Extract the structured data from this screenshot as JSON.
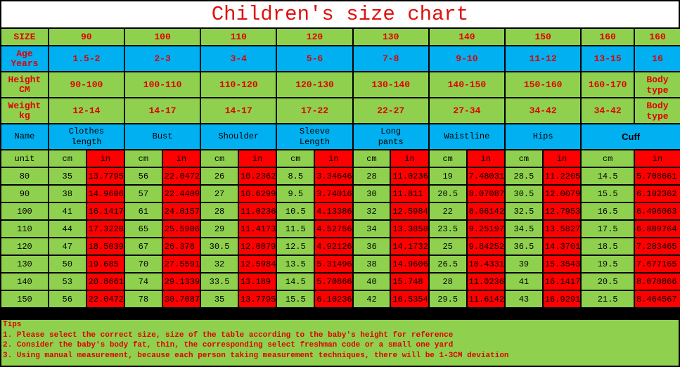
{
  "title": "Children's size chart",
  "size_row": {
    "label": "SIZE",
    "values": [
      "90",
      "100",
      "110",
      "120",
      "130",
      "140",
      "150",
      "160",
      "160"
    ]
  },
  "age_row": {
    "label": "Age\nYears",
    "values": [
      "1.5-2",
      "2-3",
      "3-4",
      "5-6",
      "7-8",
      "9-10",
      "11-12",
      "13-15",
      "16"
    ]
  },
  "height_row": {
    "label": "Height\nCM",
    "values": [
      "90-100",
      "100-110",
      "110-120",
      "120-130",
      "130-140",
      "140-150",
      "150-160",
      "160-170",
      "Body\ntype"
    ]
  },
  "weight_row": {
    "label": "Weight\nkg",
    "values": [
      "12-14",
      "14-17",
      "14-17",
      "17-22",
      "22-27",
      "27-34",
      "34-42",
      "34-42",
      "Body\ntype"
    ]
  },
  "name_row": {
    "label": "Name",
    "values": [
      "Clothes\nlength",
      "Bust",
      "Shoulder",
      "Sleeve\nLength",
      "Long\npants",
      "Waistline",
      "Hips",
      "Cuff"
    ]
  },
  "unit_row": {
    "label": "unit",
    "cm": "cm",
    "in": "in"
  },
  "rows": [
    {
      "size": "80",
      "v": [
        [
          "35",
          "13.7795"
        ],
        [
          "56",
          "22.0472"
        ],
        [
          "26",
          "10.2362"
        ],
        [
          "8.5",
          "3.34646"
        ],
        [
          "28",
          "11.0236"
        ],
        [
          "19",
          "7.48031"
        ],
        [
          "28.5",
          "11.2205"
        ],
        [
          "14.5",
          "5.708661"
        ]
      ]
    },
    {
      "size": "90",
      "v": [
        [
          "38",
          "14.9606"
        ],
        [
          "57",
          "22.4409"
        ],
        [
          "27",
          "10.6299"
        ],
        [
          "9.5",
          "3.74016"
        ],
        [
          "30",
          "11.811"
        ],
        [
          "20.5",
          "8.07087"
        ],
        [
          "30.5",
          "12.0079"
        ],
        [
          "15.5",
          "6.102362"
        ]
      ]
    },
    {
      "size": "100",
      "v": [
        [
          "41",
          "16.1417"
        ],
        [
          "61",
          "24.0157"
        ],
        [
          "28",
          "11.0236"
        ],
        [
          "10.5",
          "4.13386"
        ],
        [
          "32",
          "12.5984"
        ],
        [
          "22",
          "8.66142"
        ],
        [
          "32.5",
          "12.7953"
        ],
        [
          "16.5",
          "6.496063"
        ]
      ]
    },
    {
      "size": "110",
      "v": [
        [
          "44",
          "17.3228"
        ],
        [
          "65",
          "25.5906"
        ],
        [
          "29",
          "11.4173"
        ],
        [
          "11.5",
          "4.52756"
        ],
        [
          "34",
          "13.3858"
        ],
        [
          "23.5",
          "9.25197"
        ],
        [
          "34.5",
          "13.5827"
        ],
        [
          "17.5",
          "6.889764"
        ]
      ]
    },
    {
      "size": "120",
      "v": [
        [
          "47",
          "18.5039"
        ],
        [
          "67",
          "26.378"
        ],
        [
          "30.5",
          "12.0079"
        ],
        [
          "12.5",
          "4.92126"
        ],
        [
          "36",
          "14.1732"
        ],
        [
          "25",
          "9.84252"
        ],
        [
          "36.5",
          "14.3701"
        ],
        [
          "18.5",
          "7.283465"
        ]
      ]
    },
    {
      "size": "130",
      "v": [
        [
          "50",
          "19.685"
        ],
        [
          "70",
          "27.5591"
        ],
        [
          "32",
          "12.5984"
        ],
        [
          "13.5",
          "5.31496"
        ],
        [
          "38",
          "14.9606"
        ],
        [
          "26.5",
          "10.4331"
        ],
        [
          "39",
          "15.3543"
        ],
        [
          "19.5",
          "7.677165"
        ]
      ]
    },
    {
      "size": "140",
      "v": [
        [
          "53",
          "20.8661"
        ],
        [
          "74",
          "29.1339"
        ],
        [
          "33.5",
          "13.189"
        ],
        [
          "14.5",
          "5.70866"
        ],
        [
          "40",
          "15.748"
        ],
        [
          "28",
          "11.0236"
        ],
        [
          "41",
          "16.1417"
        ],
        [
          "20.5",
          "8.070866"
        ]
      ]
    },
    {
      "size": "150",
      "v": [
        [
          "56",
          "22.0472"
        ],
        [
          "78",
          "30.7087"
        ],
        [
          "35",
          "13.7795"
        ],
        [
          "15.5",
          "6.10236"
        ],
        [
          "42",
          "16.5354"
        ],
        [
          "29.5",
          "11.6142"
        ],
        [
          "43",
          "16.9291"
        ],
        [
          "21.5",
          "8.464567"
        ]
      ]
    }
  ],
  "tips": [
    "Tips",
    "1. Please select the correct size, size of the table according to the baby's height for reference",
    "2. Consider the baby's body fat, thin, the corresponding select freshman code or a small one yard",
    "3. Using manual measurement, because each person taking measurement techniques, there will be 1-3CM deviation"
  ],
  "colors": {
    "green": "#8fd14f",
    "blue": "#00b0f0",
    "red": "#ff0000",
    "label_text": "#e00000"
  }
}
